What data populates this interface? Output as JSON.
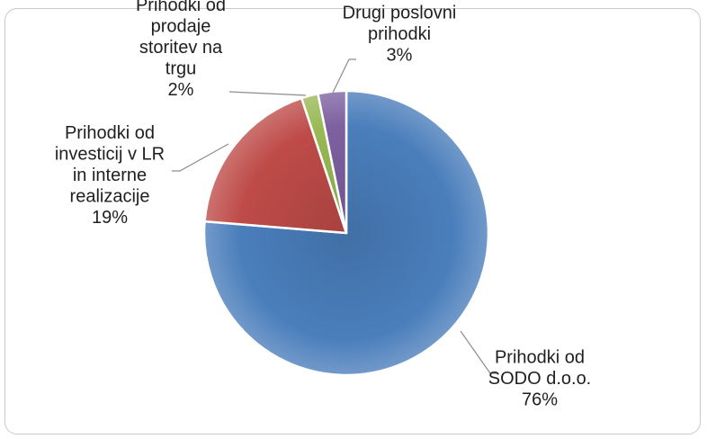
{
  "chart_data": {
    "type": "pie",
    "title": "",
    "legend": "none",
    "slices": [
      {
        "label": [
          "Prihodki od",
          "SODO d.o.o."
        ],
        "percent_label": "76%",
        "value": 76.3,
        "color": "#4a7ebb"
      },
      {
        "label": [
          "Prihodki od",
          "investicij v LR",
          "in interne",
          "realizacije"
        ],
        "percent_label": "19%",
        "value": 18.6,
        "color": "#be4b48"
      },
      {
        "label": [
          "Prihodki od",
          "prodaje",
          "storitev na",
          "trgu"
        ],
        "percent_label": "2%",
        "value": 1.9,
        "color": "#98b954"
      },
      {
        "label": [
          "Drugi poslovni",
          "prihodki"
        ],
        "percent_label": "3%",
        "value": 3.2,
        "color": "#7d60a0"
      }
    ]
  }
}
